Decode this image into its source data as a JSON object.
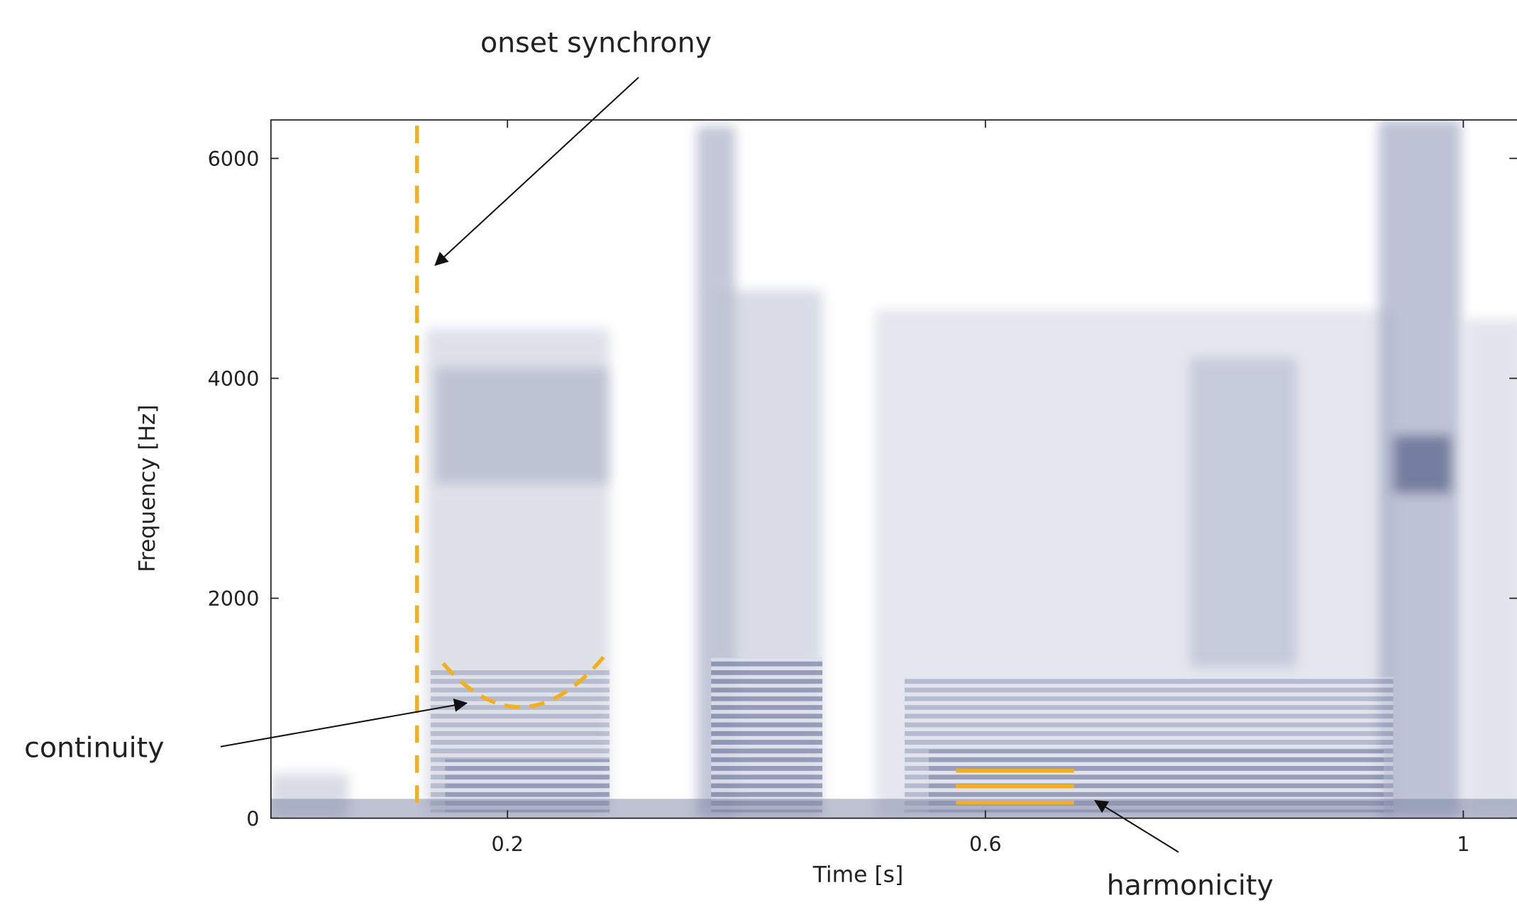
{
  "chart_data": {
    "type": "spectrogram",
    "xlabel": "Time [s]",
    "ylabel": "Frequency [Hz]",
    "xlim": [
      0.002,
      1.045
    ],
    "ylim": [
      0,
      6350
    ],
    "xticks": [
      0.2,
      0.6,
      1
    ],
    "yticks": [
      0,
      2000,
      4000,
      6000
    ],
    "annotations": [
      "onset synchrony",
      "continuity",
      "harmonicity"
    ],
    "annotation_color": "#f2b01e"
  }
}
